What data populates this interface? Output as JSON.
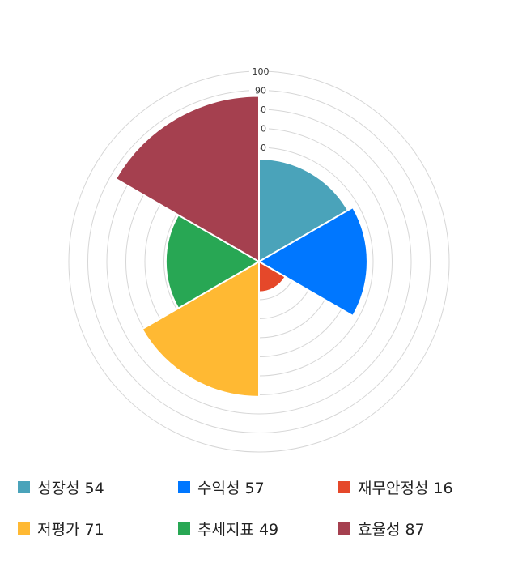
{
  "chart_data": {
    "type": "polar-area",
    "categories": [
      "성장성",
      "수익성",
      "재무안정성",
      "저평가",
      "추세지표",
      "효율성"
    ],
    "values": [
      54,
      57,
      16,
      71,
      49,
      87
    ],
    "colors": [
      "#4aa3ba",
      "#0077ff",
      "#e5482a",
      "#ffb933",
      "#28a754",
      "#a5404f"
    ],
    "rlim": [
      0,
      100
    ],
    "grid_step": 10,
    "tick_labels": [
      "60",
      "70",
      "80",
      "90",
      "100"
    ],
    "legend_position": "bottom",
    "legend": [
      "성장성 54",
      "수익성 57",
      "재무안정성 16",
      "저평가 71",
      "추세지표 49",
      "효율성 87"
    ]
  }
}
